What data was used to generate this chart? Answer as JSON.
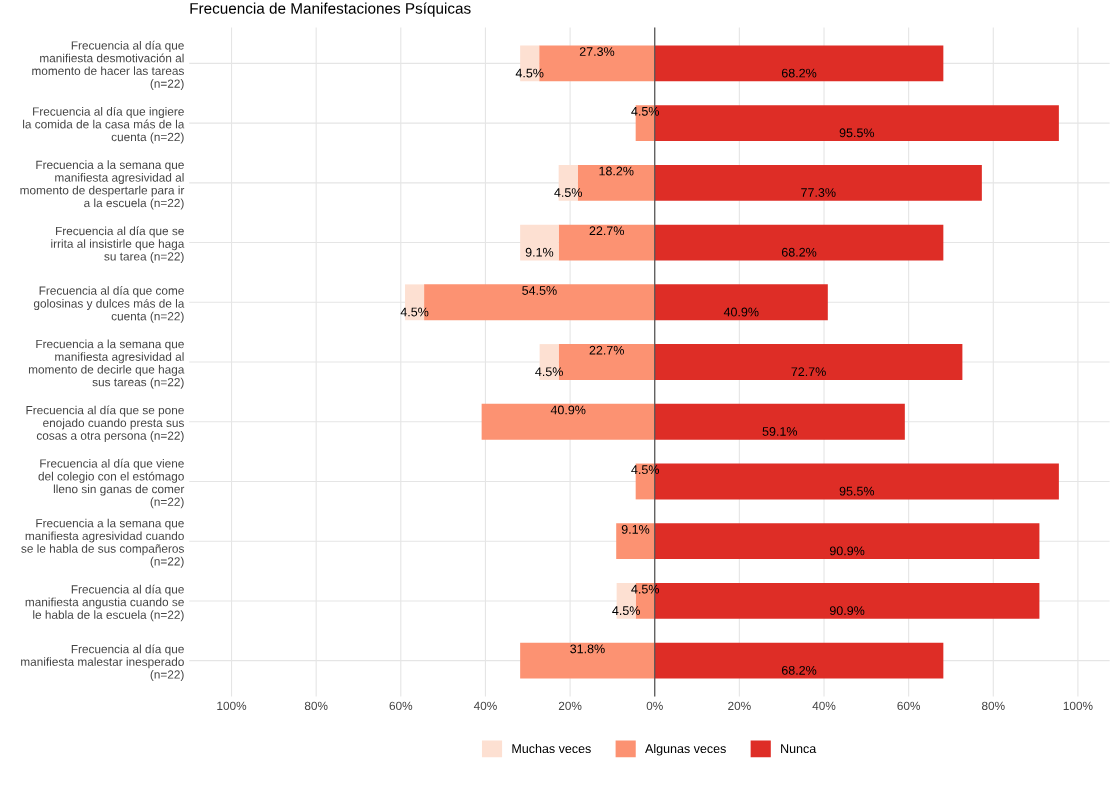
{
  "chart_data": {
    "type": "bar",
    "orientation": "horizontal",
    "title": "Frecuencia de Manifestaciones Psíquicas",
    "categories": [
      "Frecuencia al día que\nmanifiesta desmotivación al\nmomento de hacer las tareas\n(n=22)",
      "Frecuencia al día que ingiere\nla comida de la casa más de la\ncuenta (n=22)",
      "Frecuencia a la semana que\nmanifiesta agresividad al\nmomento de despertarle para ir\na la escuela (n=22)",
      "Frecuencia al día que se\nirrita al insistirle que haga\nsu tarea (n=22)",
      "Frecuencia al día que come\ngolosinas y dulces más de la\ncuenta (n=22)",
      "Frecuencia a la semana que\nmanifiesta agresividad al\nmomento de decirle que haga\nsus tareas (n=22)",
      "Frecuencia al día que se pone\nenojado cuando presta sus\ncosas a otra persona (n=22)",
      "Frecuencia al día que viene\ndel colegio con el estómago\nlleno sin ganas de comer\n(n=22)",
      "Frecuencia a la semana que\nmanifiesta agresividad cuando\nse le habla de sus compañeros\n(n=22)",
      "Frecuencia al día que\nmanifiesta angustia cuando se\nle habla de la escuela (n=22)",
      "Frecuencia al día que\nmanifiesta malestar inesperado\n(n=22)"
    ],
    "series": [
      {
        "name": "Nunca",
        "color": "#de2d26",
        "base": [
          0,
          0,
          0,
          0,
          0,
          0,
          0,
          0,
          0,
          0,
          0
        ],
        "values": [
          68.2,
          95.5,
          77.3,
          68.2,
          40.9,
          72.7,
          59.1,
          95.5,
          90.9,
          90.9,
          68.2
        ],
        "value_labels": [
          "68.2%",
          "95.5%",
          "77.3%",
          "68.2%",
          "40.9%",
          "72.7%",
          "59.1%",
          "95.5%",
          "90.9%",
          "90.9%",
          "68.2%"
        ]
      },
      {
        "name": "Algunas veces",
        "color": "#fc9272",
        "base": [
          -27.3,
          -4.5,
          -18.2,
          -22.7,
          -54.5,
          -22.7,
          -40.9,
          -4.5,
          -9.1,
          -4.5,
          -31.8
        ],
        "values": [
          27.3,
          4.5,
          18.2,
          22.7,
          54.5,
          22.7,
          40.9,
          4.5,
          9.1,
          4.5,
          31.8
        ],
        "value_labels": [
          "27.3%",
          "4.5%",
          "18.2%",
          "22.7%",
          "54.5%",
          "22.7%",
          "40.9%",
          "4.5%",
          "9.1%",
          "4.5%",
          "31.8%"
        ]
      },
      {
        "name": "Muchas veces",
        "color": "#fde0d2",
        "base": [
          -31.8,
          null,
          -22.7,
          -31.8,
          -59.0,
          -27.2,
          null,
          null,
          null,
          -9.0,
          null
        ],
        "values": [
          4.5,
          null,
          4.5,
          9.1,
          4.5,
          4.5,
          null,
          null,
          null,
          4.5,
          null
        ],
        "value_labels": [
          "4.5%",
          null,
          "4.5%",
          "9.1%",
          "4.5%",
          "4.5%",
          null,
          null,
          null,
          "4.5%",
          null
        ]
      }
    ],
    "xlim": [
      -110,
      107.5
    ],
    "xticks": [
      {
        "value": -100,
        "label": "100%"
      },
      {
        "value": -80,
        "label": "80%"
      },
      {
        "value": -60,
        "label": "60%"
      },
      {
        "value": -40,
        "label": "40%"
      },
      {
        "value": -20,
        "label": "20%"
      },
      {
        "value": 0,
        "label": "0%"
      },
      {
        "value": 20,
        "label": "20%"
      },
      {
        "value": 40,
        "label": "40%"
      },
      {
        "value": 60,
        "label": "60%"
      },
      {
        "value": 80,
        "label": "80%"
      },
      {
        "value": 100,
        "label": "100%"
      }
    ],
    "ref_lines": [
      {
        "axis": "x",
        "value": 0,
        "color": "#555555"
      }
    ],
    "grid": true,
    "legend": "bottom"
  }
}
